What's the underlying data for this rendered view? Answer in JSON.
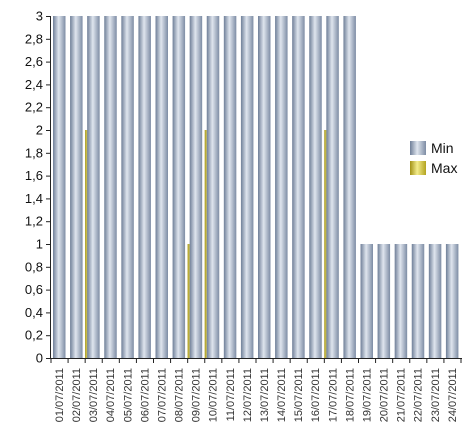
{
  "chart_data": {
    "type": "bar",
    "title": "",
    "xlabel": "",
    "ylabel": "",
    "ylim": [
      0,
      3
    ],
    "yticks": [
      "0",
      "0,2",
      "0,4",
      "0,6",
      "0,8",
      "1",
      "1,2",
      "1,4",
      "1,6",
      "1,8",
      "2",
      "2,2",
      "2,4",
      "2,6",
      "2,8",
      "3"
    ],
    "grid": false,
    "legend_position": "right",
    "categories": [
      "01/07/2011",
      "02/07/2011",
      "03/07/2011",
      "04/07/2011",
      "05/07/2011",
      "06/07/2011",
      "07/07/2011",
      "08/07/2011",
      "09/07/2011",
      "10/07/2011",
      "11/07/2011",
      "12/07/2011",
      "13/07/2011",
      "14/07/2011",
      "15/07/2011",
      "16/07/2011",
      "17/07/2011",
      "18/07/2011",
      "19/07/2011",
      "20/07/2011",
      "21/07/2011",
      "22/07/2011",
      "23/07/2011",
      "24/07/2011"
    ],
    "series": [
      {
        "name": "Min",
        "color": "#9aa8bc",
        "values": [
          3,
          3,
          3,
          3,
          3,
          3,
          3,
          3,
          3,
          3,
          3,
          3,
          3,
          3,
          3,
          3,
          3,
          3,
          1,
          1,
          1,
          1,
          1,
          1
        ]
      },
      {
        "name": "Max",
        "color": "#c8b832",
        "values": [
          null,
          2,
          null,
          null,
          null,
          null,
          null,
          1,
          2,
          null,
          null,
          null,
          null,
          null,
          null,
          2,
          null,
          null,
          null,
          null,
          null,
          null,
          null,
          null
        ]
      }
    ]
  }
}
